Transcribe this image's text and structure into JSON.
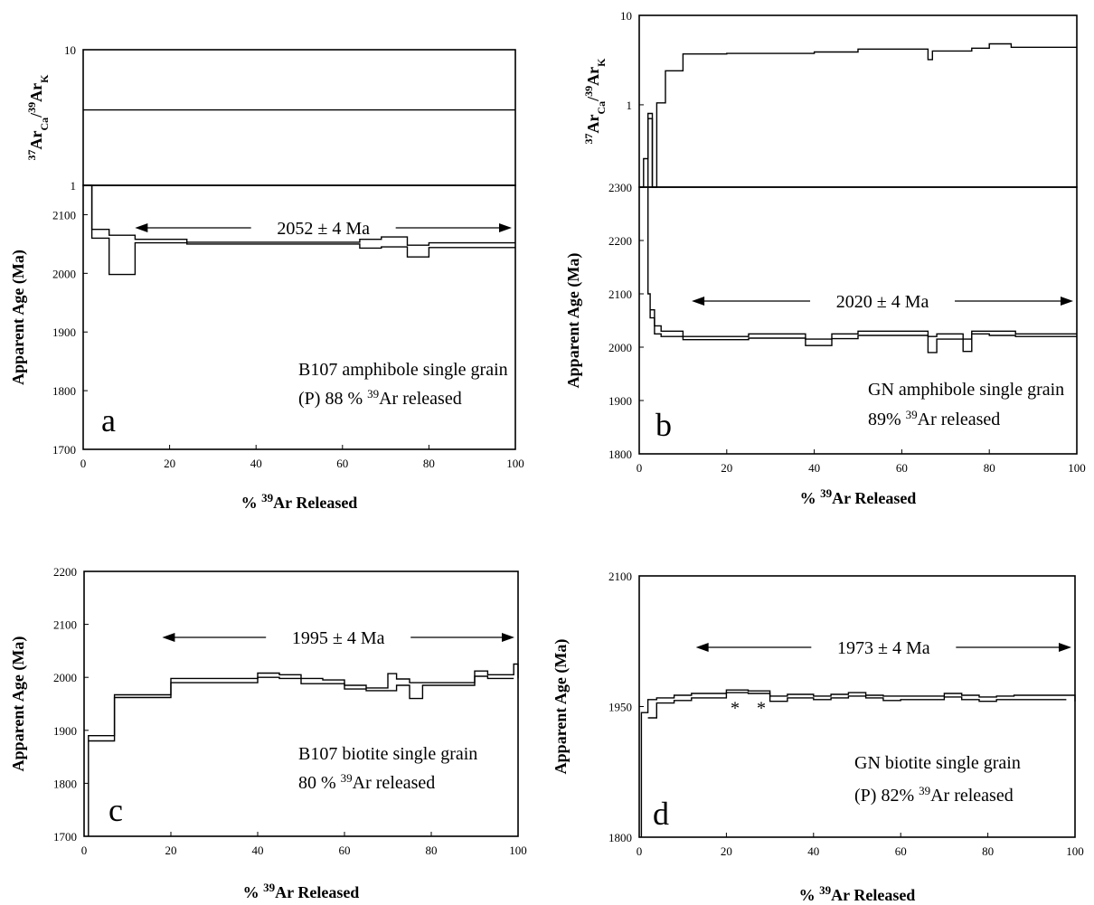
{
  "chart_data": [
    {
      "id": "a",
      "type": "line",
      "panel_letter": "a",
      "xlabel_parts": [
        "% ",
        "39",
        "Ar Released"
      ],
      "ylabel": "Apparent Age (Ma)",
      "xlim": [
        0,
        100
      ],
      "xticks": [
        "0",
        "20",
        "40",
        "60",
        "80",
        "100"
      ],
      "ylim": [
        1700,
        2150
      ],
      "yticks": [
        "1700",
        "1800",
        "1900",
        "2000",
        "2100"
      ],
      "top": {
        "ylabel_parts": [
          "37",
          "Ar",
          "Ca",
          "/",
          "39",
          "Ar",
          "K"
        ],
        "scale": "log",
        "ylim": [
          1,
          10
        ],
        "yticks": [
          "1",
          "10"
        ],
        "series": [
          {
            "x": [
              0,
              100
            ],
            "y": [
              3.6,
              3.6
            ]
          }
        ]
      },
      "series": [
        {
          "x": [
            0,
            2,
            2,
            6,
            6,
            12,
            12,
            24,
            24,
            64,
            64,
            69,
            69,
            75,
            75,
            80,
            80,
            100
          ],
          "y": [
            2150,
            2150,
            2075,
            2075,
            2065,
            2065,
            2058,
            2058,
            2053,
            2053,
            2058,
            2058,
            2062,
            2062,
            2048,
            2048,
            2052,
            2052
          ]
        },
        {
          "x": [
            0,
            2,
            2,
            6,
            6,
            12,
            12,
            24,
            24,
            64,
            64,
            69,
            69,
            75,
            75,
            80,
            80,
            100
          ],
          "y": [
            2150,
            2150,
            2060,
            2060,
            1998,
            1998,
            2052,
            2052,
            2050,
            2050,
            2043,
            2043,
            2045,
            2045,
            2028,
            2028,
            2044,
            2044
          ]
        }
      ],
      "plateau": {
        "label": "2052 ± 4 Ma",
        "x_from": 12,
        "x_to": 100,
        "y": 2052
      },
      "annotation_lines": [
        [
          "B107 amphibole single grain"
        ],
        [
          "(P) 88 %  ",
          "39",
          "Ar released"
        ]
      ]
    },
    {
      "id": "b",
      "type": "line",
      "panel_letter": "b",
      "xlabel_parts": [
        "% ",
        "39",
        "Ar Released"
      ],
      "ylabel": "Apparent Age (Ma)",
      "xlim": [
        0,
        100
      ],
      "xticks": [
        "0",
        "20",
        "40",
        "60",
        "80",
        "100"
      ],
      "ylim": [
        1800,
        2300
      ],
      "yticks": [
        "1800",
        "1900",
        "2000",
        "2100",
        "2200",
        "2300"
      ],
      "top": {
        "ylabel_parts": [
          "37",
          "Ar",
          "Ca",
          "/",
          "39",
          "Ar",
          "K"
        ],
        "scale": "log",
        "ylim": [
          0.12,
          10
        ],
        "yticks": [
          "1",
          "10"
        ],
        "series": [
          {
            "x": [
              0,
              1,
              1,
              2,
              2,
              3,
              3,
              4,
              4,
              6,
              6,
              10,
              10,
              20,
              20,
              40,
              40,
              50,
              50,
              66,
              66,
              67,
              67,
              76,
              76,
              80,
              80,
              85,
              85,
              100
            ],
            "y": [
              0.12,
              0.12,
              0.25,
              0.25,
              0.8,
              0.8,
              0.12,
              0.12,
              1.05,
              1.05,
              2.4,
              2.4,
              3.7,
              3.7,
              3.75,
              3.75,
              3.9,
              3.9,
              4.2,
              4.2,
              3.2,
              3.2,
              4.0,
              4.0,
              4.3,
              4.3,
              4.8,
              4.8,
              4.4,
              4.4
            ]
          },
          {
            "x": [
              2,
              2,
              3,
              3
            ],
            "y": [
              0.12,
              0.7,
              0.7,
              0.12
            ]
          }
        ]
      },
      "series": [
        {
          "x": [
            2,
            2,
            2.5,
            2.5,
            3.5,
            3.5,
            5,
            5,
            10,
            10,
            25,
            25,
            38,
            38,
            44,
            44,
            50,
            50,
            66,
            66,
            68,
            68,
            74,
            74,
            76,
            76,
            80,
            80,
            86,
            86,
            100
          ],
          "y": [
            2300,
            2100,
            2100,
            2055,
            2055,
            2040,
            2040,
            2030,
            2030,
            2020,
            2020,
            2025,
            2025,
            2015,
            2015,
            2025,
            2025,
            2030,
            2030,
            2020,
            2020,
            2025,
            2025,
            2015,
            2015,
            2030,
            2030,
            2030,
            2030,
            2025,
            2025
          ]
        },
        {
          "x": [
            2.5,
            2.5,
            3.5,
            3.5,
            5,
            5,
            10,
            10,
            25,
            25,
            38,
            38,
            44,
            44,
            50,
            50,
            66,
            66,
            68,
            68,
            74,
            74,
            76,
            76,
            80,
            80,
            86,
            86,
            100
          ],
          "y": [
            2070,
            2070,
            2070,
            2025,
            2025,
            2020,
            2020,
            2014,
            2014,
            2017,
            2017,
            2003,
            2003,
            2016,
            2016,
            2022,
            2022,
            1990,
            1990,
            2015,
            2015,
            1992,
            1992,
            2025,
            2025,
            2022,
            2022,
            2020,
            2020
          ]
        }
      ],
      "plateau": {
        "label": "2020 ± 4 Ma",
        "x_from": 12,
        "x_to": 100,
        "y": 2020
      },
      "annotation_lines": [
        [
          "GN amphibole single grain"
        ],
        [
          "89%  ",
          "39",
          "Ar released"
        ]
      ]
    },
    {
      "id": "c",
      "type": "line",
      "panel_letter": "c",
      "xlabel_parts": [
        "% ",
        "39",
        "Ar Released"
      ],
      "ylabel": "Apparent Age (Ma)",
      "xlim": [
        0,
        100
      ],
      "xticks": [
        "0",
        "20",
        "40",
        "60",
        "80",
        "100"
      ],
      "ylim": [
        1700,
        2200
      ],
      "yticks": [
        "1700",
        "1800",
        "1900",
        "2000",
        "2100",
        "2200"
      ],
      "series": [
        {
          "x": [
            1,
            1,
            7,
            7,
            20,
            20,
            40,
            40,
            45,
            45,
            50,
            50,
            55,
            55,
            60,
            60,
            65,
            65,
            70,
            70,
            72,
            72,
            75,
            75,
            78,
            78,
            90,
            90,
            93,
            93,
            99,
            99,
            100,
            100
          ],
          "y": [
            1700,
            1890,
            1890,
            1967,
            1967,
            1998,
            1998,
            2008,
            2008,
            2005,
            2005,
            1998,
            1998,
            1995,
            1995,
            1985,
            1985,
            1980,
            1980,
            2007,
            2007,
            1997,
            1997,
            1990,
            1990,
            1990,
            1990,
            2012,
            2012,
            2005,
            2005,
            2025,
            2025,
            1998
          ]
        },
        {
          "x": [
            1,
            7,
            7,
            20,
            20,
            40,
            40,
            45,
            45,
            50,
            50,
            55,
            55,
            60,
            60,
            65,
            65,
            70,
            70,
            72,
            72,
            75,
            75,
            78,
            78,
            90,
            90,
            93,
            93,
            99
          ],
          "y": [
            1880,
            1880,
            1962,
            1962,
            1990,
            1990,
            2000,
            2000,
            1998,
            1998,
            1988,
            1988,
            1988,
            1988,
            1978,
            1978,
            1975,
            1975,
            1975,
            1975,
            1985,
            1985,
            1960,
            1960,
            1985,
            1985,
            2002,
            2002,
            1998,
            1998
          ]
        }
      ],
      "plateau": {
        "label": "1995 ± 4 Ma",
        "x_from": 18,
        "x_to": 100,
        "y": 1995
      },
      "annotation_lines": [
        [
          "B107 biotite single grain"
        ],
        [
          "80 %  ",
          "39",
          "Ar released"
        ]
      ]
    },
    {
      "id": "d",
      "type": "line",
      "panel_letter": "d",
      "xlabel_parts": [
        "% ",
        "39",
        "Ar Released"
      ],
      "ylabel": "Apparent Age (Ma)",
      "xlim": [
        0,
        100
      ],
      "xticks": [
        "0",
        "20",
        "40",
        "60",
        "80",
        "100"
      ],
      "ylim": [
        1800,
        2100
      ],
      "yticks": [
        "1800",
        "1950",
        "2100"
      ],
      "series": [
        {
          "x": [
            0.5,
            0.5,
            2,
            2,
            4,
            4,
            8,
            8,
            12,
            12,
            16,
            16,
            20,
            20,
            25,
            25,
            30,
            30,
            34,
            34,
            40,
            40,
            44,
            44,
            48,
            48,
            52,
            52,
            56,
            56,
            60,
            60,
            65,
            65,
            70,
            70,
            74,
            74,
            78,
            78,
            82,
            82,
            86,
            86,
            98,
            98,
            100,
            100
          ],
          "y": [
            1800,
            1943,
            1943,
            1958,
            1958,
            1960,
            1960,
            1963,
            1963,
            1965,
            1965,
            1965,
            1965,
            1969,
            1969,
            1968,
            1968,
            1962,
            1962,
            1964,
            1964,
            1962,
            1962,
            1964,
            1964,
            1966,
            1966,
            1963,
            1963,
            1962,
            1962,
            1962,
            1962,
            1962,
            1962,
            1965,
            1965,
            1963,
            1963,
            1961,
            1961,
            1962,
            1962,
            1963,
            1963,
            1963,
            1963,
            1956
          ]
        },
        {
          "x": [
            2,
            4,
            4,
            8,
            8,
            12,
            12,
            16,
            16,
            20,
            20,
            25,
            25,
            30,
            30,
            34,
            34,
            40,
            40,
            44,
            44,
            48,
            48,
            52,
            52,
            56,
            56,
            60,
            60,
            65,
            65,
            70,
            70,
            74,
            74,
            78,
            78,
            82,
            82,
            86,
            86,
            98
          ],
          "y": [
            1937,
            1937,
            1954,
            1954,
            1957,
            1957,
            1960,
            1960,
            1960,
            1960,
            1966,
            1966,
            1965,
            1965,
            1956,
            1956,
            1960,
            1960,
            1958,
            1958,
            1960,
            1960,
            1962,
            1962,
            1960,
            1960,
            1957,
            1957,
            1958,
            1958,
            1958,
            1958,
            1961,
            1961,
            1958,
            1958,
            1956,
            1956,
            1958,
            1958,
            1958,
            1958
          ]
        }
      ],
      "markers": [
        {
          "x": 22,
          "label": "*"
        },
        {
          "x": 28,
          "label": "*"
        }
      ],
      "plateau": {
        "label": "1973 ± 4 Ma",
        "x_from": 13,
        "x_to": 100,
        "y": 1973
      },
      "annotation_lines": [
        [
          "GN biotite single grain"
        ],
        [
          "(P) 82%  ",
          "39",
          "Ar released"
        ]
      ]
    }
  ]
}
